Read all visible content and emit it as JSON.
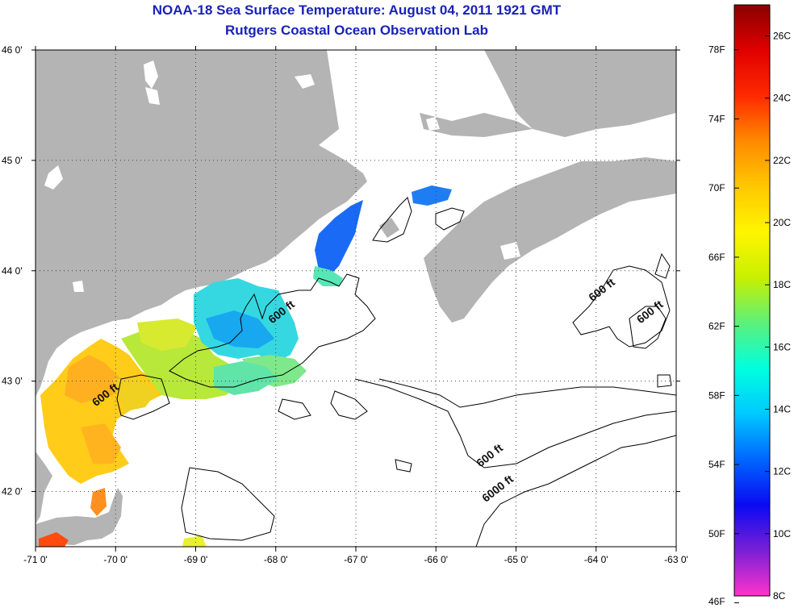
{
  "title_line1": "NOAA-18 Sea Surface Temperature:  August 04, 2011 1921 GMT",
  "title_line2": "Rutgers Coastal Ocean Observation Lab",
  "map": {
    "lon_range": [
      -71,
      -63
    ],
    "lat_range": [
      41.5,
      46
    ],
    "lon_ticks": [
      "-71 0'",
      "-70 0'",
      "-69 0'",
      "-68 0'",
      "-67 0'",
      "-66 0'",
      "-65 0'",
      "-64 0'",
      "-63 0'"
    ],
    "lat_ticks": [
      "46 0'",
      "45 0'",
      "44 0'",
      "43 0'",
      "42 0'"
    ],
    "grid": "dotted",
    "colors": {
      "land": "#b4b4b4",
      "ocean_no_data": "#ffffff",
      "contour": "#000000"
    },
    "contour_labels": [
      {
        "text": "600 ft",
        "lon": -67.9,
        "lat": 43.6
      },
      {
        "text": "600 ft",
        "lon": -70.1,
        "lat": 42.85
      },
      {
        "text": "600 ft",
        "lon": -63.9,
        "lat": 43.8
      },
      {
        "text": "600 ft",
        "lon": -63.3,
        "lat": 43.6
      },
      {
        "text": "600 ft",
        "lon": -65.3,
        "lat": 42.3
      },
      {
        "text": "6000 ft",
        "lon": -65.2,
        "lat": 42.0
      }
    ]
  },
  "colorbar": {
    "fahrenheit_labels": [
      "78F",
      "74F",
      "70F",
      "66F",
      "62F",
      "58F",
      "54F",
      "50F",
      "46F"
    ],
    "celsius_labels": [
      "26C",
      "24C",
      "22C",
      "20C",
      "18C",
      "16C",
      "14C",
      "12C",
      "10C",
      "8C"
    ],
    "range_c": [
      8,
      27
    ],
    "color_stops": [
      "#ff33cc",
      "#7a1fd6",
      "#0a0af2",
      "#0066ff",
      "#00c8ff",
      "#00ffdf",
      "#5cf07a",
      "#c8f000",
      "#fff500",
      "#ffc800",
      "#ff8a00",
      "#ff2a00",
      "#e00000",
      "#8b0000"
    ]
  }
}
